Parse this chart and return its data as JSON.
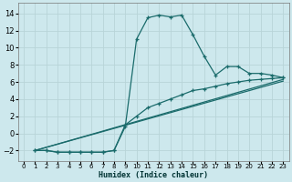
{
  "xlabel": "Humidex (Indice chaleur)",
  "background_color": "#cde8ed",
  "grid_color": "#b8d4d8",
  "line_color": "#1a6b6b",
  "xlim": [
    -0.5,
    23.5
  ],
  "ylim": [
    -3.2,
    15.2
  ],
  "xticks": [
    0,
    1,
    2,
    3,
    4,
    5,
    6,
    7,
    8,
    9,
    10,
    11,
    12,
    13,
    14,
    15,
    16,
    17,
    18,
    19,
    20,
    21,
    22,
    23
  ],
  "yticks": [
    -2,
    0,
    2,
    4,
    6,
    8,
    10,
    12,
    14
  ],
  "curve_main_x": [
    1,
    2,
    3,
    4,
    5,
    6,
    7,
    8,
    9,
    10,
    11,
    12,
    13,
    14,
    15,
    16,
    17,
    18,
    19,
    20,
    21,
    22,
    23
  ],
  "curve_main_y": [
    -2,
    -2,
    -2.2,
    -2.2,
    -2.2,
    -2.2,
    -2.2,
    -2.0,
    0.8,
    11.0,
    13.5,
    13.8,
    13.6,
    13.8,
    11.5,
    9.0,
    6.8,
    7.8,
    7.8,
    7.0,
    7.0,
    6.8,
    6.5
  ],
  "curve_low_x": [
    1,
    2,
    3,
    4,
    5,
    6,
    7,
    8,
    9,
    10,
    11,
    12,
    13,
    14,
    15,
    16,
    17,
    18,
    19,
    20,
    21,
    22,
    23
  ],
  "curve_low_y": [
    -2,
    -2,
    -2.2,
    -2.2,
    -2.2,
    -2.2,
    -2.2,
    -2.0,
    1.0,
    2.0,
    3.0,
    3.5,
    4.0,
    4.5,
    5.0,
    5.2,
    5.5,
    5.8,
    6.0,
    6.2,
    6.3,
    6.4,
    6.5
  ],
  "curve_line1_x": [
    1,
    23
  ],
  "curve_line1_y": [
    -2.0,
    6.3
  ],
  "curve_line2_x": [
    1,
    23
  ],
  "curve_line2_y": [
    -2.0,
    6.1
  ]
}
